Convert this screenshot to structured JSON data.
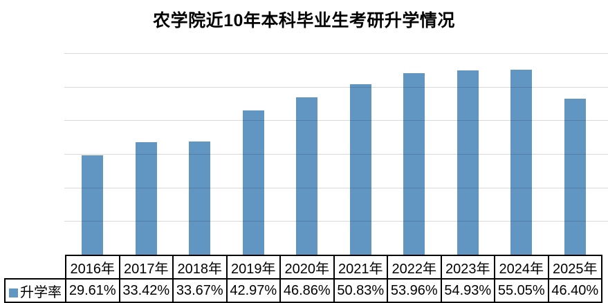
{
  "title": "农学院近10年本科毕业生考研升学情况",
  "colors": {
    "bar": "#6196C3",
    "gridline": "#D9D9D9",
    "table_border": "#000000",
    "title_text": "#000000",
    "background": "#FFFFFF"
  },
  "table": {
    "legend_label": "升学率",
    "years": [
      "2016年",
      "2017年",
      "2018年",
      "2019年",
      "2020年",
      "2021年",
      "2022年",
      "2023年",
      "2024年",
      "2025年"
    ],
    "values": [
      "29.61%",
      "33.42%",
      "33.67%",
      "42.97%",
      "46.86%",
      "50.83%",
      "53.96%",
      "54.93%",
      "55.05%",
      "46.40%"
    ]
  },
  "chart_data": {
    "type": "bar",
    "title": "农学院近10年本科毕业生考研升学情况",
    "categories": [
      "2016年",
      "2017年",
      "2018年",
      "2019年",
      "2020年",
      "2021年",
      "2022年",
      "2023年",
      "2024年",
      "2025年"
    ],
    "series": [
      {
        "name": "升学率",
        "values": [
          29.61,
          33.42,
          33.67,
          42.97,
          46.86,
          50.83,
          53.96,
          54.93,
          55.05,
          46.4
        ]
      }
    ],
    "xlabel": "",
    "ylabel": "",
    "ylim": [
      0,
      60
    ],
    "grid_interval": 10,
    "grid": true,
    "y_axis_labels_visible": false,
    "legend_position": "data-table-left",
    "data_table_shown": true
  }
}
